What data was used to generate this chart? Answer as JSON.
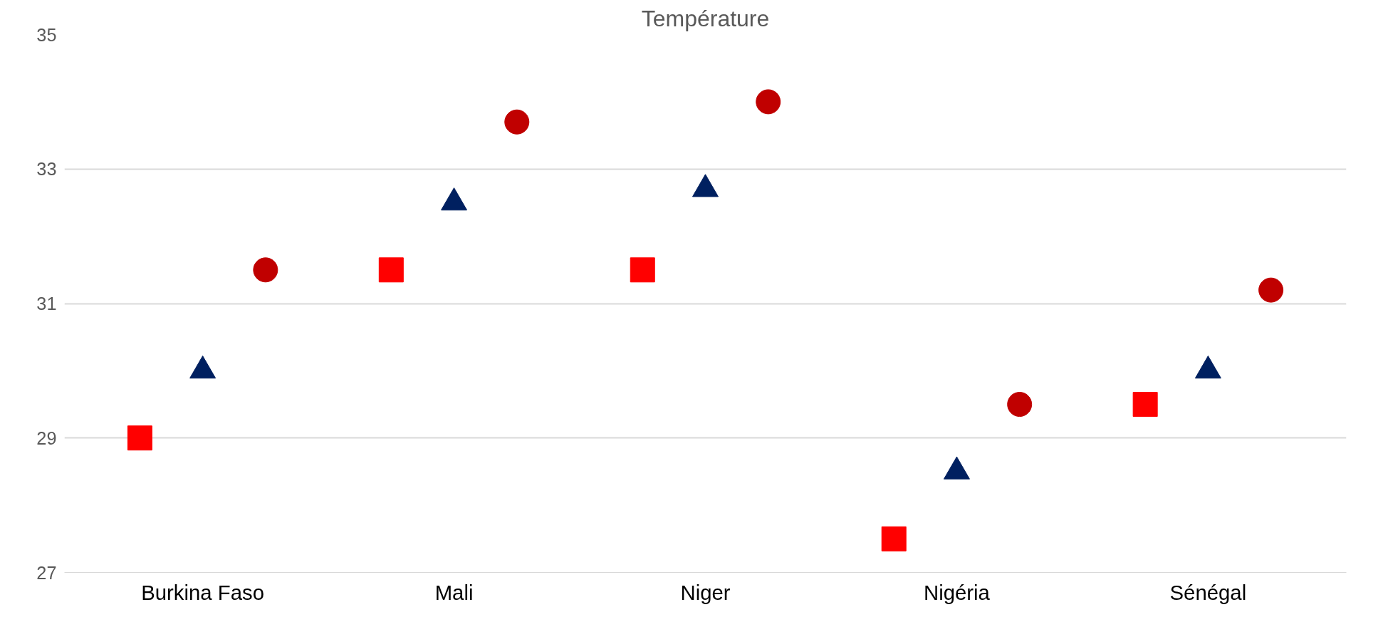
{
  "chart_data": {
    "type": "scatter",
    "title": "Température",
    "categories": [
      "Burkina Faso",
      "Mali",
      "Niger",
      "Nigéria",
      "Sénégal"
    ],
    "series": [
      {
        "color": "#ff0000",
        "marker": "square",
        "values": [
          29,
          31.5,
          31.5,
          27.5,
          29.5
        ]
      },
      {
        "color": "#002060",
        "marker": "triangle",
        "values": [
          30,
          32.5,
          32.7,
          28.5,
          30
        ]
      },
      {
        "color": "#c00000",
        "marker": "circle",
        "values": [
          31.5,
          33.7,
          34,
          29.5,
          31.2
        ]
      }
    ],
    "ylim": [
      27,
      35
    ],
    "yticks": [
      27,
      29,
      31,
      33,
      35
    ],
    "grid": "y"
  }
}
